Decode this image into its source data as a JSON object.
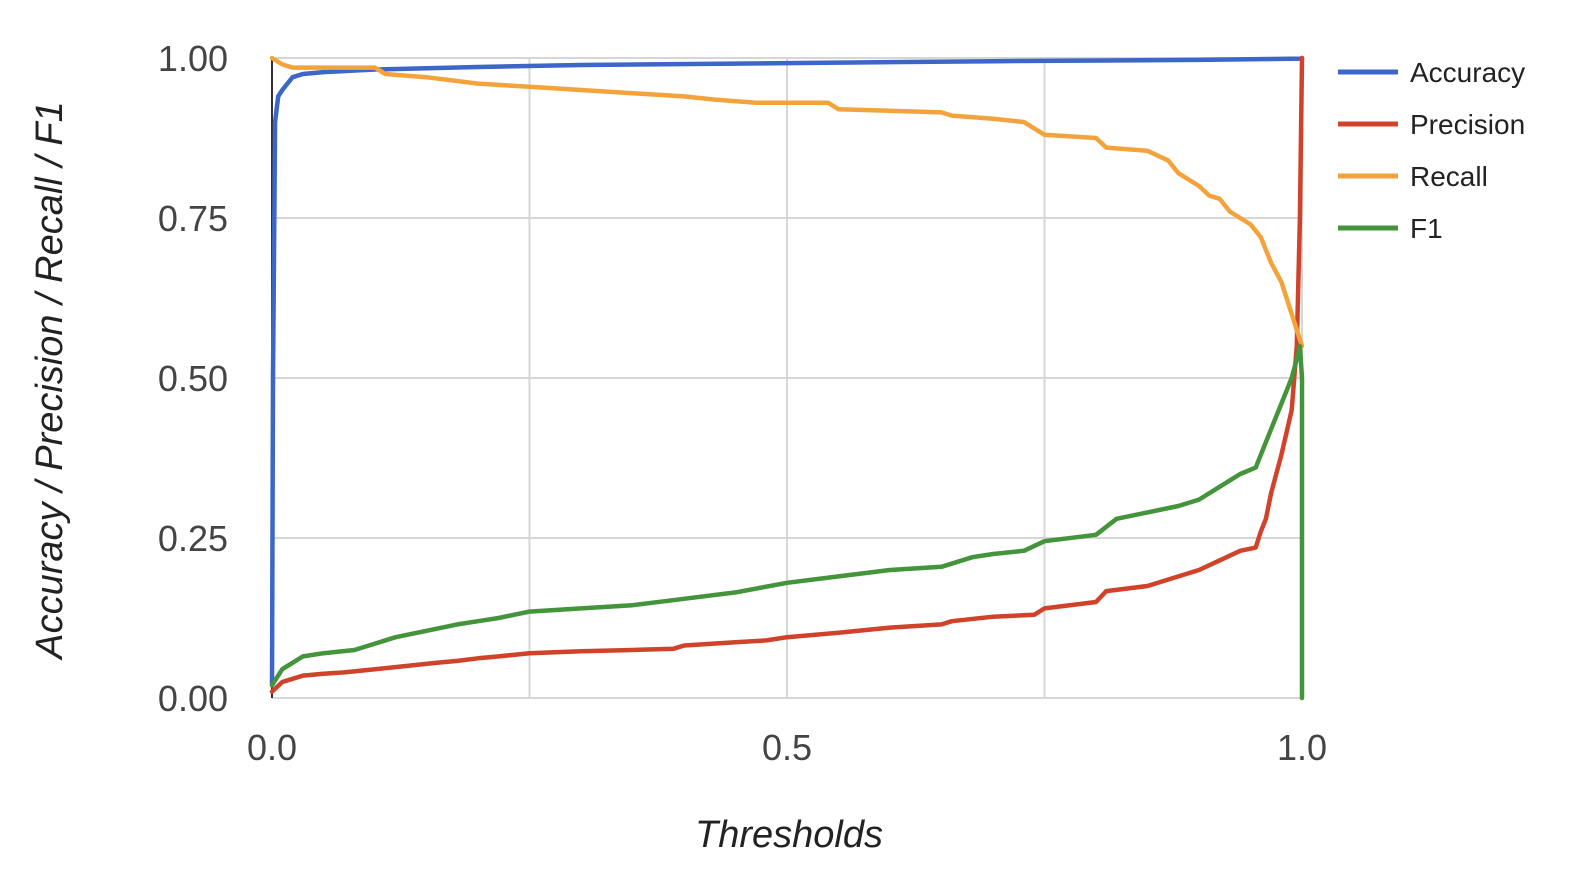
{
  "chart_data": {
    "type": "line",
    "xlabel": "Thresholds",
    "ylabel": "Accuracy / Precision / Recall / F1",
    "xlim": [
      0,
      1
    ],
    "ylim": [
      0,
      1
    ],
    "x_ticks": [
      "0.0",
      "0.5",
      "1.0"
    ],
    "x_tick_values": [
      0,
      0.5,
      1
    ],
    "y_ticks": [
      "0.00",
      "0.25",
      "0.50",
      "0.75",
      "1.00"
    ],
    "y_tick_values": [
      0,
      0.25,
      0.5,
      0.75,
      1
    ],
    "x_minor_gridlines": [
      0.25,
      0.75
    ],
    "grid": true,
    "legend_position": "right",
    "series": [
      {
        "name": "Accuracy",
        "color": "#3c66c8",
        "x": [
          0,
          0.001,
          0.003,
          0.006,
          0.01,
          0.02,
          0.03,
          0.05,
          0.1,
          0.2,
          0.3,
          0.5,
          0.7,
          0.9,
          0.999,
          1
        ],
        "y": [
          0.02,
          0.5,
          0.9,
          0.94,
          0.95,
          0.97,
          0.975,
          0.978,
          0.982,
          0.986,
          0.989,
          0.992,
          0.995,
          0.997,
          0.999,
          1.0
        ]
      },
      {
        "name": "Precision",
        "color": "#d0432a",
        "x": [
          0,
          0.01,
          0.02,
          0.03,
          0.05,
          0.07,
          0.1,
          0.13,
          0.16,
          0.18,
          0.2,
          0.22,
          0.25,
          0.3,
          0.35,
          0.39,
          0.4,
          0.45,
          0.48,
          0.5,
          0.55,
          0.6,
          0.65,
          0.66,
          0.7,
          0.74,
          0.75,
          0.8,
          0.81,
          0.85,
          0.88,
          0.9,
          0.92,
          0.94,
          0.955,
          0.96,
          0.965,
          0.97,
          0.98,
          0.99,
          0.995,
          0.998,
          1
        ],
        "y": [
          0.01,
          0.025,
          0.03,
          0.035,
          0.038,
          0.04,
          0.045,
          0.05,
          0.055,
          0.058,
          0.062,
          0.065,
          0.07,
          0.073,
          0.075,
          0.077,
          0.082,
          0.087,
          0.09,
          0.095,
          0.102,
          0.11,
          0.115,
          0.12,
          0.127,
          0.13,
          0.14,
          0.15,
          0.167,
          0.175,
          0.19,
          0.2,
          0.215,
          0.23,
          0.235,
          0.26,
          0.28,
          0.32,
          0.38,
          0.45,
          0.55,
          0.75,
          1.0
        ]
      },
      {
        "name": "Recall",
        "color": "#f3a33c",
        "x": [
          0,
          0.01,
          0.02,
          0.1,
          0.11,
          0.15,
          0.2,
          0.25,
          0.3,
          0.35,
          0.4,
          0.43,
          0.47,
          0.5,
          0.54,
          0.55,
          0.65,
          0.66,
          0.7,
          0.73,
          0.75,
          0.8,
          0.81,
          0.85,
          0.87,
          0.88,
          0.9,
          0.91,
          0.92,
          0.93,
          0.94,
          0.95,
          0.96,
          0.97,
          0.98,
          0.99,
          1
        ],
        "y": [
          1.0,
          0.99,
          0.985,
          0.985,
          0.975,
          0.97,
          0.96,
          0.955,
          0.95,
          0.945,
          0.94,
          0.935,
          0.93,
          0.93,
          0.93,
          0.92,
          0.915,
          0.91,
          0.905,
          0.9,
          0.88,
          0.875,
          0.86,
          0.855,
          0.84,
          0.82,
          0.8,
          0.785,
          0.78,
          0.76,
          0.75,
          0.74,
          0.72,
          0.68,
          0.65,
          0.6,
          0.55
        ]
      },
      {
        "name": "F1",
        "color": "#43943b",
        "x": [
          0,
          0.01,
          0.02,
          0.03,
          0.05,
          0.08,
          0.1,
          0.12,
          0.15,
          0.18,
          0.2,
          0.22,
          0.25,
          0.3,
          0.35,
          0.4,
          0.45,
          0.5,
          0.55,
          0.6,
          0.65,
          0.68,
          0.7,
          0.73,
          0.75,
          0.8,
          0.82,
          0.85,
          0.88,
          0.9,
          0.92,
          0.94,
          0.955,
          0.96,
          0.97,
          0.98,
          0.99,
          0.995,
          0.998,
          1,
          1
        ],
        "y": [
          0.02,
          0.045,
          0.055,
          0.065,
          0.07,
          0.075,
          0.085,
          0.095,
          0.105,
          0.115,
          0.12,
          0.125,
          0.135,
          0.14,
          0.145,
          0.155,
          0.165,
          0.18,
          0.19,
          0.2,
          0.205,
          0.22,
          0.225,
          0.23,
          0.245,
          0.255,
          0.28,
          0.29,
          0.3,
          0.31,
          0.33,
          0.35,
          0.36,
          0.38,
          0.42,
          0.46,
          0.5,
          0.53,
          0.55,
          0.5,
          0.0
        ]
      }
    ]
  }
}
